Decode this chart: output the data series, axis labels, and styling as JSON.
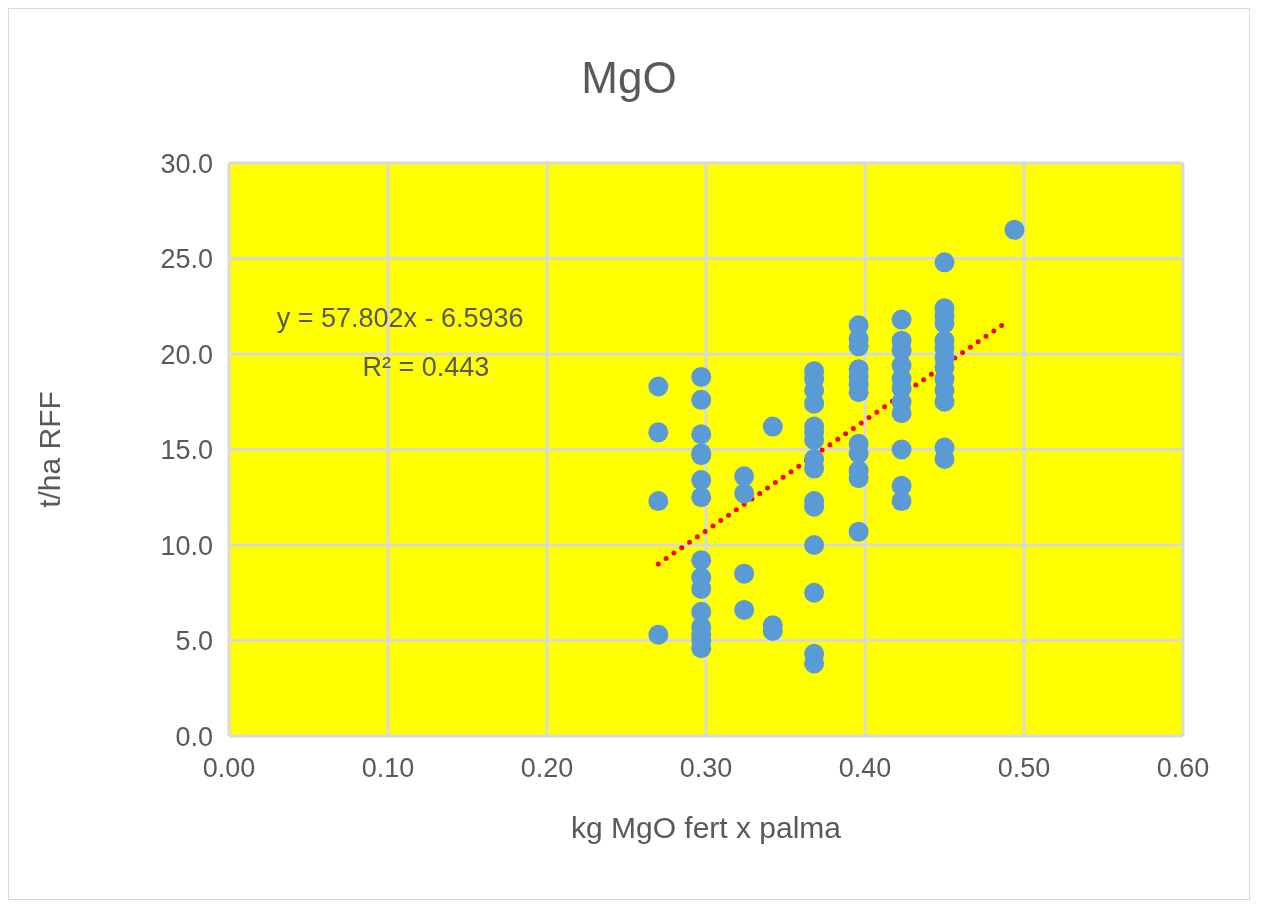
{
  "chart_data": {
    "type": "scatter",
    "title": "MgO",
    "xlabel": "kg MgO fert x palma",
    "ylabel": "t/ha RFF",
    "xlim": [
      0,
      0.6
    ],
    "xticks": [
      {
        "value": 0,
        "label": "0.00"
      },
      {
        "value": 0.1,
        "label": "0.10"
      },
      {
        "value": 0.2,
        "label": "0.20"
      },
      {
        "value": 0.3,
        "label": "0.30"
      },
      {
        "value": 0.4,
        "label": "0.40"
      },
      {
        "value": 0.5,
        "label": "0.50"
      },
      {
        "value": 0.6,
        "label": "0.60"
      }
    ],
    "ylim": [
      0,
      30
    ],
    "yticks": [
      {
        "value": 0,
        "label": "0.0"
      },
      {
        "value": 5,
        "label": "5.0"
      },
      {
        "value": 10,
        "label": "10.0"
      },
      {
        "value": 15,
        "label": "15.0"
      },
      {
        "value": 20,
        "label": "20.0"
      },
      {
        "value": 25,
        "label": "25.0"
      },
      {
        "value": 30,
        "label": "30.0"
      }
    ],
    "grid": true,
    "legend": false,
    "annotations": [
      "y = 57.802x  - 6.5936",
      "R² = 0.443"
    ],
    "series": [
      {
        "color": "#5b9bd5",
        "marker": "circle",
        "x": [
          0.27,
          0.27,
          0.27,
          0.27,
          0.297,
          0.297,
          0.297,
          0.297,
          0.297,
          0.297,
          0.297,
          0.297,
          0.297,
          0.297,
          0.297,
          0.297,
          0.297,
          0.297,
          0.297,
          0.324,
          0.324,
          0.324,
          0.324,
          0.342,
          0.342,
          0.342,
          0.368,
          0.368,
          0.368,
          0.368,
          0.368,
          0.368,
          0.368,
          0.368,
          0.368,
          0.368,
          0.368,
          0.368,
          0.368,
          0.368,
          0.368,
          0.396,
          0.396,
          0.396,
          0.396,
          0.396,
          0.396,
          0.396,
          0.396,
          0.396,
          0.396,
          0.396,
          0.396,
          0.423,
          0.423,
          0.423,
          0.423,
          0.423,
          0.423,
          0.423,
          0.423,
          0.423,
          0.423,
          0.423,
          0.45,
          0.45,
          0.45,
          0.45,
          0.45,
          0.45,
          0.45,
          0.45,
          0.45,
          0.45,
          0.45,
          0.45,
          0.45,
          0.494
        ],
        "values": [
          18.3,
          15.9,
          12.3,
          5.3,
          18.8,
          17.6,
          15.8,
          14.8,
          14.7,
          13.4,
          12.5,
          9.2,
          8.3,
          7.7,
          6.5,
          5.7,
          5.3,
          5.0,
          4.6,
          13.6,
          12.7,
          8.5,
          6.6,
          16.2,
          5.8,
          5.5,
          19.1,
          18.7,
          18.1,
          17.4,
          16.2,
          15.9,
          15.5,
          14.5,
          14.0,
          12.3,
          12.0,
          10.0,
          7.5,
          4.3,
          3.8,
          21.5,
          20.8,
          20.4,
          19.2,
          18.8,
          18.4,
          18.0,
          15.3,
          14.8,
          13.9,
          13.5,
          10.7,
          21.8,
          20.7,
          20.2,
          19.4,
          18.7,
          18.2,
          17.5,
          16.9,
          15.0,
          13.1,
          12.3,
          24.8,
          22.4,
          22.0,
          21.6,
          20.7,
          20.3,
          19.8,
          19.3,
          18.7,
          18.1,
          17.5,
          15.1,
          14.5,
          26.5
        ]
      },
      {
        "type": "line",
        "color": "#ff0000",
        "line_style": "dotted",
        "marker": "none",
        "x": [
          0.27,
          0.49
        ],
        "values": [
          9.01,
          21.73
        ]
      }
    ]
  }
}
